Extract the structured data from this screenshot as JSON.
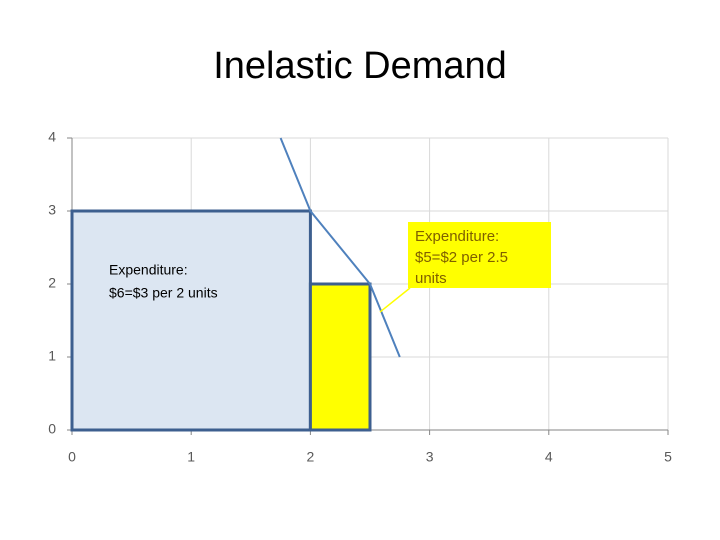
{
  "chart_data": {
    "type": "line",
    "title": "Inelastic Demand",
    "x": [
      1.75,
      2,
      2.5,
      2.75
    ],
    "series": [
      {
        "color": "#4f81bd",
        "values": [
          4,
          3,
          2,
          1
        ]
      }
    ],
    "xlim": [
      0,
      5
    ],
    "xticks": [
      0,
      1,
      2,
      3,
      4,
      5
    ],
    "ylim": [
      0,
      4
    ],
    "yticks": [
      0,
      1,
      2,
      3,
      4
    ],
    "grid": true,
    "rectangles": [
      {
        "x": [
          0,
          2
        ],
        "y": [
          0,
          3
        ],
        "fill": "#dce6f2",
        "stroke": "#3d5f8f",
        "lines": [
          "Expenditure:",
          "$6=$3 per 2 units"
        ]
      },
      {
        "x": [
          2,
          2.5
        ],
        "y": [
          0,
          2
        ],
        "fill": "#ffff00",
        "stroke": "#3d5f8f",
        "lines": [
          "Expenditure:",
          "$5=$2 per 2.5",
          "units"
        ],
        "callout_color": "#ffff00"
      }
    ]
  }
}
